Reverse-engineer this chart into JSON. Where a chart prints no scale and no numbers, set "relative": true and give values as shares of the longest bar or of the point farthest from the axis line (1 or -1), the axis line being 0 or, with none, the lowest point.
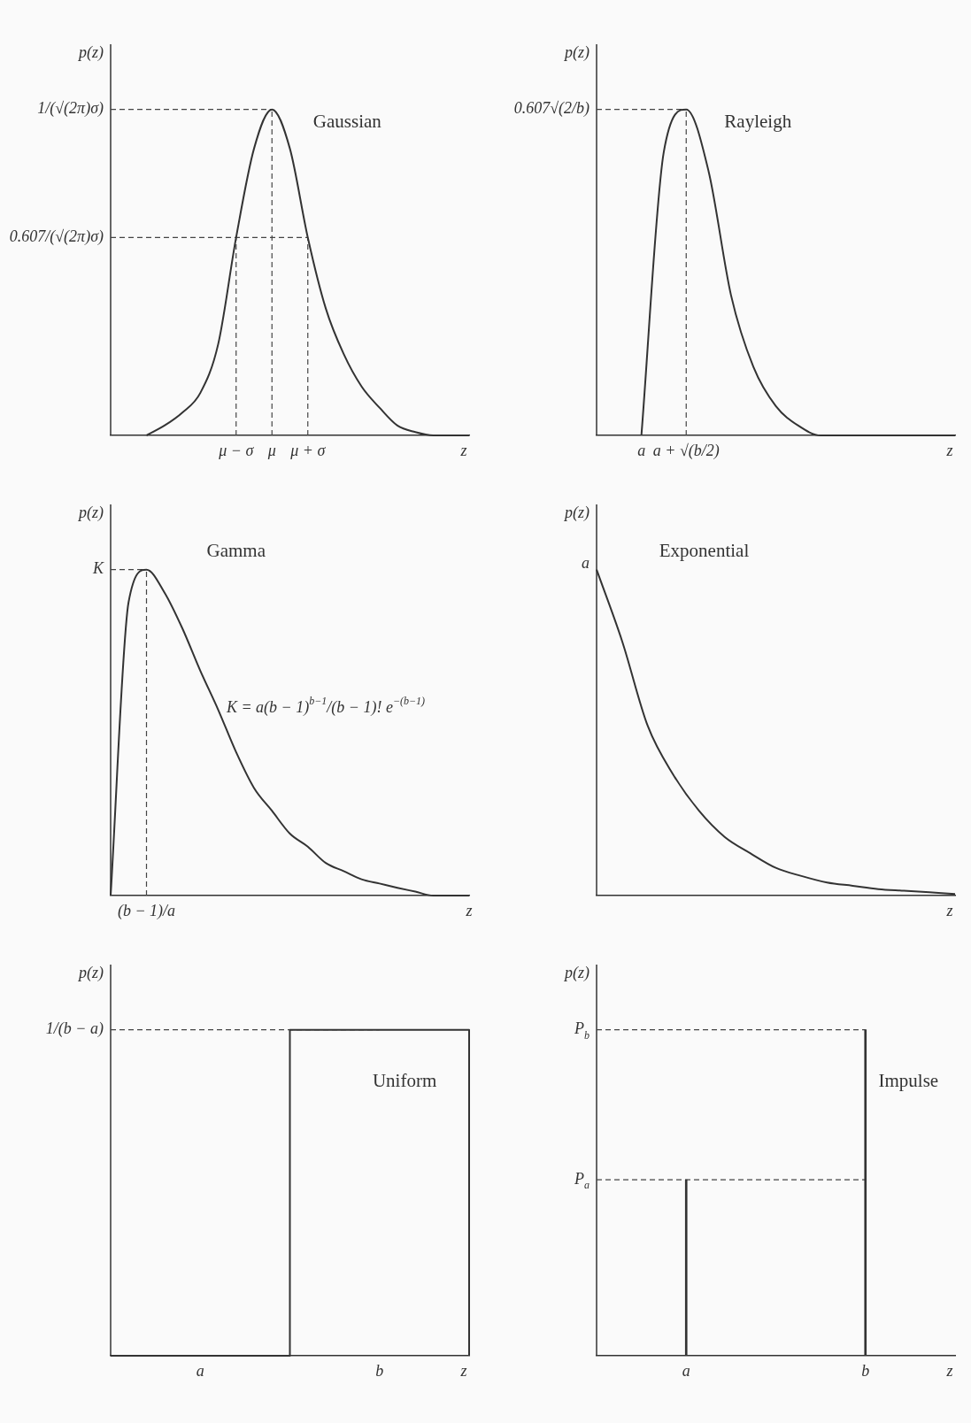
{
  "chart_data": [
    {
      "type": "line",
      "relative": true,
      "title": "Gaussian",
      "xlabel": "z",
      "ylabel": "p(z)",
      "marker": "none",
      "line_style": "solid",
      "color": "#333333",
      "categories": [
        null,
        null,
        null,
        null,
        null,
        null,
        null,
        "μ − σ",
        null,
        "μ",
        null,
        "μ + σ",
        null,
        null,
        null,
        null,
        null,
        null,
        null,
        null,
        null
      ],
      "values": [
        null,
        null,
        0,
        0.03,
        0.07,
        0.13,
        0.28,
        0.607,
        0.88,
        1,
        0.88,
        0.607,
        0.39,
        0.25,
        0.15,
        0.085,
        0.03,
        0.01,
        0,
        0,
        0
      ],
      "ref_lines": [
        {
          "axis": "y",
          "value": 1,
          "label": "1/(√(2π)σ)",
          "color": "#444444",
          "line_style": "dashed"
        },
        {
          "axis": "y",
          "value": 0.607,
          "label": "0.607/(√(2π)σ)",
          "color": "#444444",
          "line_style": "dashed"
        },
        {
          "axis": "x",
          "value": "μ − σ",
          "color": "#444444",
          "line_style": "dashed"
        },
        {
          "axis": "x",
          "value": "μ",
          "color": "#444444",
          "line_style": "dashed"
        },
        {
          "axis": "x",
          "value": "μ + σ",
          "color": "#444444",
          "line_style": "dashed"
        }
      ]
    },
    {
      "type": "line",
      "relative": true,
      "title": "Rayleigh",
      "xlabel": "z",
      "ylabel": "p(z)",
      "marker": "none",
      "line_style": "solid",
      "color": "#333333",
      "categories": [
        null,
        null,
        "a",
        null,
        "a + √(b/2)",
        null,
        null,
        null,
        null,
        null,
        null,
        null,
        null,
        null,
        null,
        null,
        null
      ],
      "values": [
        null,
        null,
        0,
        0.87,
        1,
        0.81,
        0.43,
        0.21,
        0.09,
        0.03,
        0,
        0,
        0,
        0,
        0,
        0,
        0
      ],
      "ref_lines": [
        {
          "axis": "y",
          "value": 1,
          "label": "0.607√(2/b)",
          "color": "#444444",
          "line_style": "dashed"
        },
        {
          "axis": "x",
          "value": "a + √(b/2)",
          "color": "#444444",
          "line_style": "dashed"
        }
      ]
    },
    {
      "type": "line",
      "relative": true,
      "title": "Gamma",
      "ylabel": "p(z)",
      "marker": "none",
      "line_style": "solid",
      "color": "#333333",
      "categories": [
        null,
        null,
        "(b − 1)/a",
        null,
        null,
        null,
        null,
        null,
        null,
        null,
        null,
        null,
        null,
        null,
        null,
        null,
        null,
        null,
        null,
        null,
        "z"
      ],
      "values": [
        0,
        0.9,
        1,
        0.93,
        0.82,
        0.69,
        0.57,
        0.44,
        0.33,
        0.26,
        0.19,
        0.15,
        0.1,
        0.075,
        0.05,
        0.037,
        0.024,
        0.012,
        0,
        0,
        0
      ],
      "annotations": [
        "K = a(b − 1)$^{b−1}$/(b − 1)! e$^{−(b−1)}$"
      ],
      "ref_lines": [
        {
          "axis": "y",
          "value": 1,
          "label": "K",
          "color": "#444444",
          "line_style": "dashed"
        },
        {
          "axis": "x",
          "value": "(b − 1)/a",
          "color": "#444444",
          "line_style": "dashed"
        }
      ]
    },
    {
      "type": "line",
      "relative": true,
      "title": "Exponential",
      "xlabel": "z",
      "ylabel": "p(z)",
      "marker": "none",
      "line_style": "solid",
      "color": "#333333",
      "categories": [
        null,
        null,
        null,
        null,
        null,
        null,
        null,
        null,
        null,
        null,
        null,
        null,
        null,
        null,
        null
      ],
      "values": [
        1,
        0.78,
        0.52,
        0.37,
        0.26,
        0.18,
        0.13,
        0.085,
        0.06,
        0.04,
        0.03,
        0.02,
        0.015,
        0.01,
        0.005
      ],
      "annotations": [
        "a"
      ]
    },
    {
      "type": "step",
      "relative": true,
      "title": "Uniform",
      "xlabel": "z",
      "ylabel": "p(z)",
      "marker": "none",
      "line_style": "solid",
      "color": "#333333",
      "categories": [
        null,
        "a",
        null,
        "b",
        null
      ],
      "values": [
        0,
        0,
        1,
        1,
        0
      ],
      "ref_lines": [
        {
          "axis": "y",
          "value": 1,
          "label": "1/(b − a)",
          "color": "#444444",
          "line_style": "dashed"
        }
      ]
    },
    {
      "type": "bar",
      "relative": true,
      "title": "Impulse",
      "xlabel": "z",
      "ylabel": "p(z)",
      "color": "#333333",
      "categories": [
        null,
        "a",
        null,
        "b",
        null
      ],
      "values": [
        null,
        0.54,
        null,
        1,
        null
      ],
      "ref_lines": [
        {
          "axis": "y",
          "value": 1,
          "label": "P$_{b}$",
          "color": "#444444",
          "line_style": "dashed"
        },
        {
          "axis": "y",
          "value": 0.54,
          "label": "P$_{a}$",
          "color": "#444444",
          "line_style": "dashed"
        }
      ]
    }
  ]
}
